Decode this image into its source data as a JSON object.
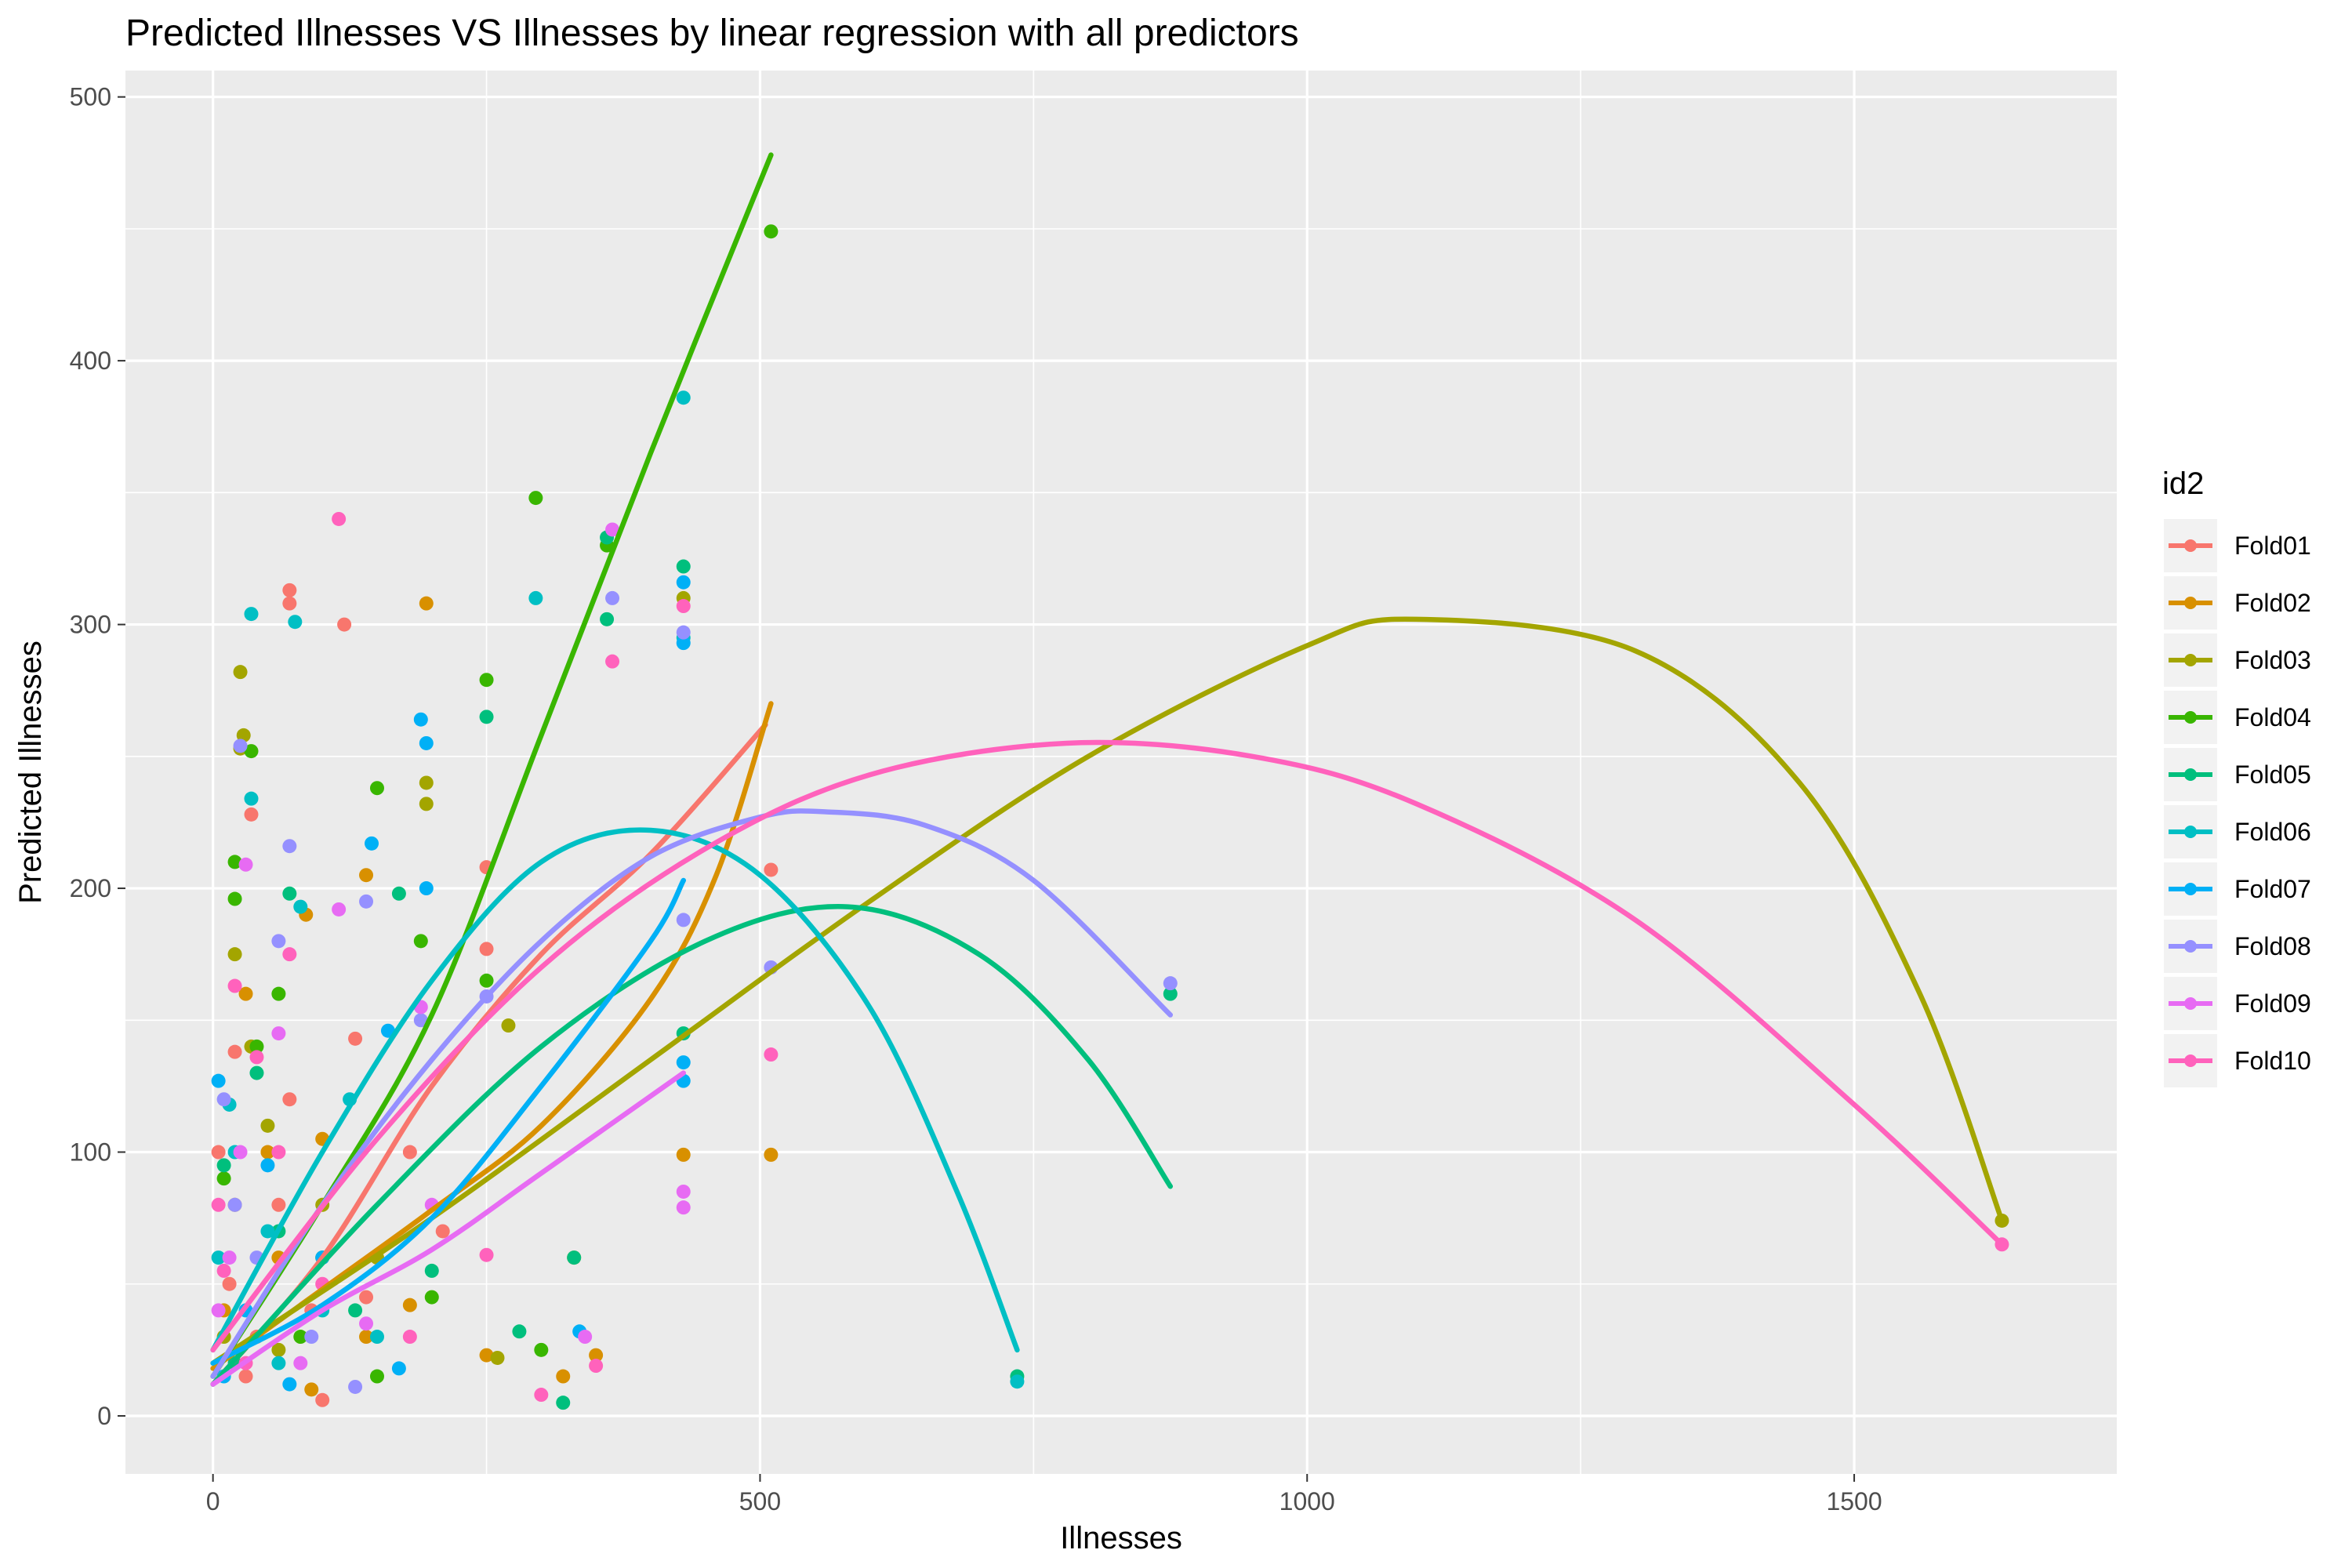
{
  "chart_data": {
    "type": "scatter",
    "title": "Predicted Illnesses VS Illnesses by linear regression with all predictors",
    "xlabel": "Illnesses",
    "ylabel": "Predicted Illnesses",
    "xlim": [
      -80,
      1740
    ],
    "ylim": [
      -22,
      510
    ],
    "xticks": [
      0,
      500,
      1000,
      1500
    ],
    "yticks": [
      0,
      100,
      200,
      300,
      400,
      500
    ],
    "grid": true,
    "legend_title": "id2",
    "legend_position": "right",
    "series": [
      {
        "name": "Fold01",
        "color": "#F8766D",
        "curve": [
          [
            0,
            12
          ],
          [
            100,
            60
          ],
          [
            200,
            125
          ],
          [
            300,
            175
          ],
          [
            400,
            213
          ],
          [
            505,
            262
          ]
        ],
        "points": [
          [
            70,
            313
          ],
          [
            70,
            308
          ],
          [
            120,
            300
          ],
          [
            35,
            228
          ],
          [
            250,
            208
          ],
          [
            510,
            207
          ],
          [
            250,
            177
          ],
          [
            130,
            143
          ],
          [
            70,
            120
          ],
          [
            20,
            138
          ],
          [
            5,
            100
          ],
          [
            180,
            100
          ],
          [
            210,
            70
          ],
          [
            100,
            6
          ],
          [
            40,
            30
          ],
          [
            15,
            50
          ],
          [
            60,
            80
          ],
          [
            90,
            40
          ],
          [
            30,
            15
          ],
          [
            140,
            45
          ]
        ]
      },
      {
        "name": "Fold02",
        "color": "#D89000",
        "curve": [
          [
            0,
            18
          ],
          [
            100,
            48
          ],
          [
            200,
            78
          ],
          [
            300,
            110
          ],
          [
            400,
            158
          ],
          [
            460,
            205
          ],
          [
            510,
            270
          ]
        ],
        "points": [
          [
            195,
            308
          ],
          [
            140,
            205
          ],
          [
            85,
            190
          ],
          [
            510,
            99
          ],
          [
            430,
            99
          ],
          [
            330,
            60
          ],
          [
            350,
            23
          ],
          [
            320,
            15
          ],
          [
            250,
            23
          ],
          [
            50,
            100
          ],
          [
            20,
            80
          ],
          [
            100,
            105
          ],
          [
            140,
            30
          ],
          [
            60,
            60
          ],
          [
            10,
            40
          ],
          [
            180,
            42
          ],
          [
            30,
            160
          ],
          [
            90,
            10
          ]
        ]
      },
      {
        "name": "Fold03",
        "color": "#A3A500",
        "curve": [
          [
            0,
            20
          ],
          [
            200,
            75
          ],
          [
            400,
            135
          ],
          [
            600,
            195
          ],
          [
            800,
            250
          ],
          [
            1000,
            292
          ],
          [
            1100,
            302
          ],
          [
            1300,
            290
          ],
          [
            1450,
            240
          ],
          [
            1560,
            160
          ],
          [
            1635,
            74
          ]
        ],
        "points": [
          [
            1635,
            74
          ],
          [
            25,
            282
          ],
          [
            28,
            258
          ],
          [
            25,
            253
          ],
          [
            195,
            240
          ],
          [
            195,
            232
          ],
          [
            270,
            148
          ],
          [
            430,
            310
          ],
          [
            260,
            22
          ],
          [
            20,
            175
          ],
          [
            50,
            110
          ],
          [
            100,
            80
          ],
          [
            60,
            25
          ],
          [
            10,
            30
          ],
          [
            150,
            60
          ],
          [
            35,
            140
          ]
        ]
      },
      {
        "name": "Fold04",
        "color": "#39B600",
        "curve": [
          [
            0,
            15
          ],
          [
            100,
            80
          ],
          [
            200,
            152
          ],
          [
            300,
            258
          ],
          [
            400,
            365
          ],
          [
            510,
            478
          ]
        ],
        "points": [
          [
            510,
            449
          ],
          [
            295,
            348
          ],
          [
            360,
            330
          ],
          [
            250,
            279
          ],
          [
            35,
            252
          ],
          [
            150,
            238
          ],
          [
            20,
            210
          ],
          [
            20,
            196
          ],
          [
            190,
            180
          ],
          [
            250,
            165
          ],
          [
            60,
            160
          ],
          [
            40,
            140
          ],
          [
            100,
            60
          ],
          [
            150,
            15
          ],
          [
            300,
            25
          ],
          [
            10,
            90
          ],
          [
            80,
            30
          ],
          [
            200,
            45
          ]
        ]
      },
      {
        "name": "Fold05",
        "color": "#00BF7D",
        "curve": [
          [
            0,
            12
          ],
          [
            150,
            80
          ],
          [
            300,
            140
          ],
          [
            450,
            180
          ],
          [
            580,
            193
          ],
          [
            700,
            175
          ],
          [
            800,
            135
          ],
          [
            875,
            87
          ]
        ],
        "points": [
          [
            735,
            15
          ],
          [
            875,
            160
          ],
          [
            360,
            302
          ],
          [
            360,
            333
          ],
          [
            430,
            322
          ],
          [
            250,
            265
          ],
          [
            70,
            198
          ],
          [
            170,
            198
          ],
          [
            430,
            145
          ],
          [
            320,
            5
          ],
          [
            330,
            60
          ],
          [
            280,
            32
          ],
          [
            40,
            130
          ],
          [
            10,
            95
          ],
          [
            60,
            70
          ],
          [
            130,
            40
          ],
          [
            200,
            55
          ],
          [
            20,
            20
          ]
        ]
      },
      {
        "name": "Fold06",
        "color": "#00BFC4",
        "curve": [
          [
            0,
            25
          ],
          [
            100,
            100
          ],
          [
            200,
            165
          ],
          [
            300,
            210
          ],
          [
            400,
            222
          ],
          [
            500,
            205
          ],
          [
            600,
            155
          ],
          [
            680,
            85
          ],
          [
            735,
            25
          ]
        ],
        "points": [
          [
            735,
            13
          ],
          [
            35,
            304
          ],
          [
            75,
            301
          ],
          [
            295,
            310
          ],
          [
            430,
            386
          ],
          [
            35,
            234
          ],
          [
            80,
            193
          ],
          [
            125,
            120
          ],
          [
            430,
            295
          ],
          [
            15,
            118
          ],
          [
            50,
            70
          ],
          [
            100,
            40
          ],
          [
            20,
            100
          ],
          [
            60,
            20
          ],
          [
            150,
            30
          ],
          [
            5,
            60
          ]
        ]
      },
      {
        "name": "Fold07",
        "color": "#00B0F6",
        "curve": [
          [
            0,
            20
          ],
          [
            100,
            42
          ],
          [
            200,
            75
          ],
          [
            300,
            125
          ],
          [
            400,
            180
          ],
          [
            430,
            203
          ]
        ],
        "points": [
          [
            190,
            264
          ],
          [
            195,
            255
          ],
          [
            145,
            217
          ],
          [
            195,
            200
          ],
          [
            430,
            316
          ],
          [
            430,
            293
          ],
          [
            430,
            127
          ],
          [
            430,
            134
          ],
          [
            335,
            32
          ],
          [
            160,
            146
          ],
          [
            5,
            127
          ],
          [
            50,
            95
          ],
          [
            100,
            60
          ],
          [
            30,
            40
          ],
          [
            10,
            15
          ],
          [
            170,
            18
          ],
          [
            70,
            12
          ]
        ]
      },
      {
        "name": "Fold08",
        "color": "#9590FF",
        "curve": [
          [
            0,
            15
          ],
          [
            100,
            80
          ],
          [
            200,
            135
          ],
          [
            300,
            180
          ],
          [
            400,
            212
          ],
          [
            500,
            227
          ],
          [
            560,
            229
          ],
          [
            650,
            224
          ],
          [
            750,
            203
          ],
          [
            875,
            152
          ]
        ],
        "points": [
          [
            875,
            164
          ],
          [
            365,
            310
          ],
          [
            430,
            297
          ],
          [
            25,
            254
          ],
          [
            70,
            216
          ],
          [
            140,
            195
          ],
          [
            510,
            170
          ],
          [
            430,
            188
          ],
          [
            250,
            159
          ],
          [
            60,
            180
          ],
          [
            10,
            120
          ],
          [
            40,
            60
          ],
          [
            90,
            30
          ],
          [
            130,
            11
          ],
          [
            20,
            80
          ],
          [
            190,
            150
          ]
        ]
      },
      {
        "name": "Fold09",
        "color": "#E76BF3",
        "curve": [
          [
            0,
            12
          ],
          [
            100,
            40
          ],
          [
            200,
            63
          ],
          [
            300,
            92
          ],
          [
            430,
            130
          ]
        ],
        "points": [
          [
            365,
            336
          ],
          [
            30,
            209
          ],
          [
            115,
            192
          ],
          [
            190,
            155
          ],
          [
            430,
            85
          ],
          [
            430,
            79
          ],
          [
            200,
            80
          ],
          [
            340,
            30
          ],
          [
            60,
            145
          ],
          [
            15,
            60
          ],
          [
            80,
            20
          ],
          [
            140,
            35
          ],
          [
            25,
            100
          ],
          [
            5,
            40
          ]
        ]
      },
      {
        "name": "Fold10",
        "color": "#FF62BC",
        "curve": [
          [
            0,
            25
          ],
          [
            150,
            105
          ],
          [
            300,
            170
          ],
          [
            450,
            215
          ],
          [
            600,
            243
          ],
          [
            780,
            255
          ],
          [
            950,
            250
          ],
          [
            1100,
            232
          ],
          [
            1300,
            188
          ],
          [
            1500,
            118
          ],
          [
            1635,
            65
          ]
        ],
        "points": [
          [
            1635,
            65
          ],
          [
            115,
            340
          ],
          [
            365,
            286
          ],
          [
            430,
            307
          ],
          [
            510,
            137
          ],
          [
            350,
            19
          ],
          [
            300,
            8
          ],
          [
            250,
            61
          ],
          [
            20,
            163
          ],
          [
            40,
            136
          ],
          [
            70,
            175
          ],
          [
            5,
            80
          ],
          [
            30,
            20
          ],
          [
            100,
            50
          ],
          [
            60,
            100
          ],
          [
            180,
            30
          ],
          [
            10,
            55
          ]
        ]
      }
    ]
  }
}
